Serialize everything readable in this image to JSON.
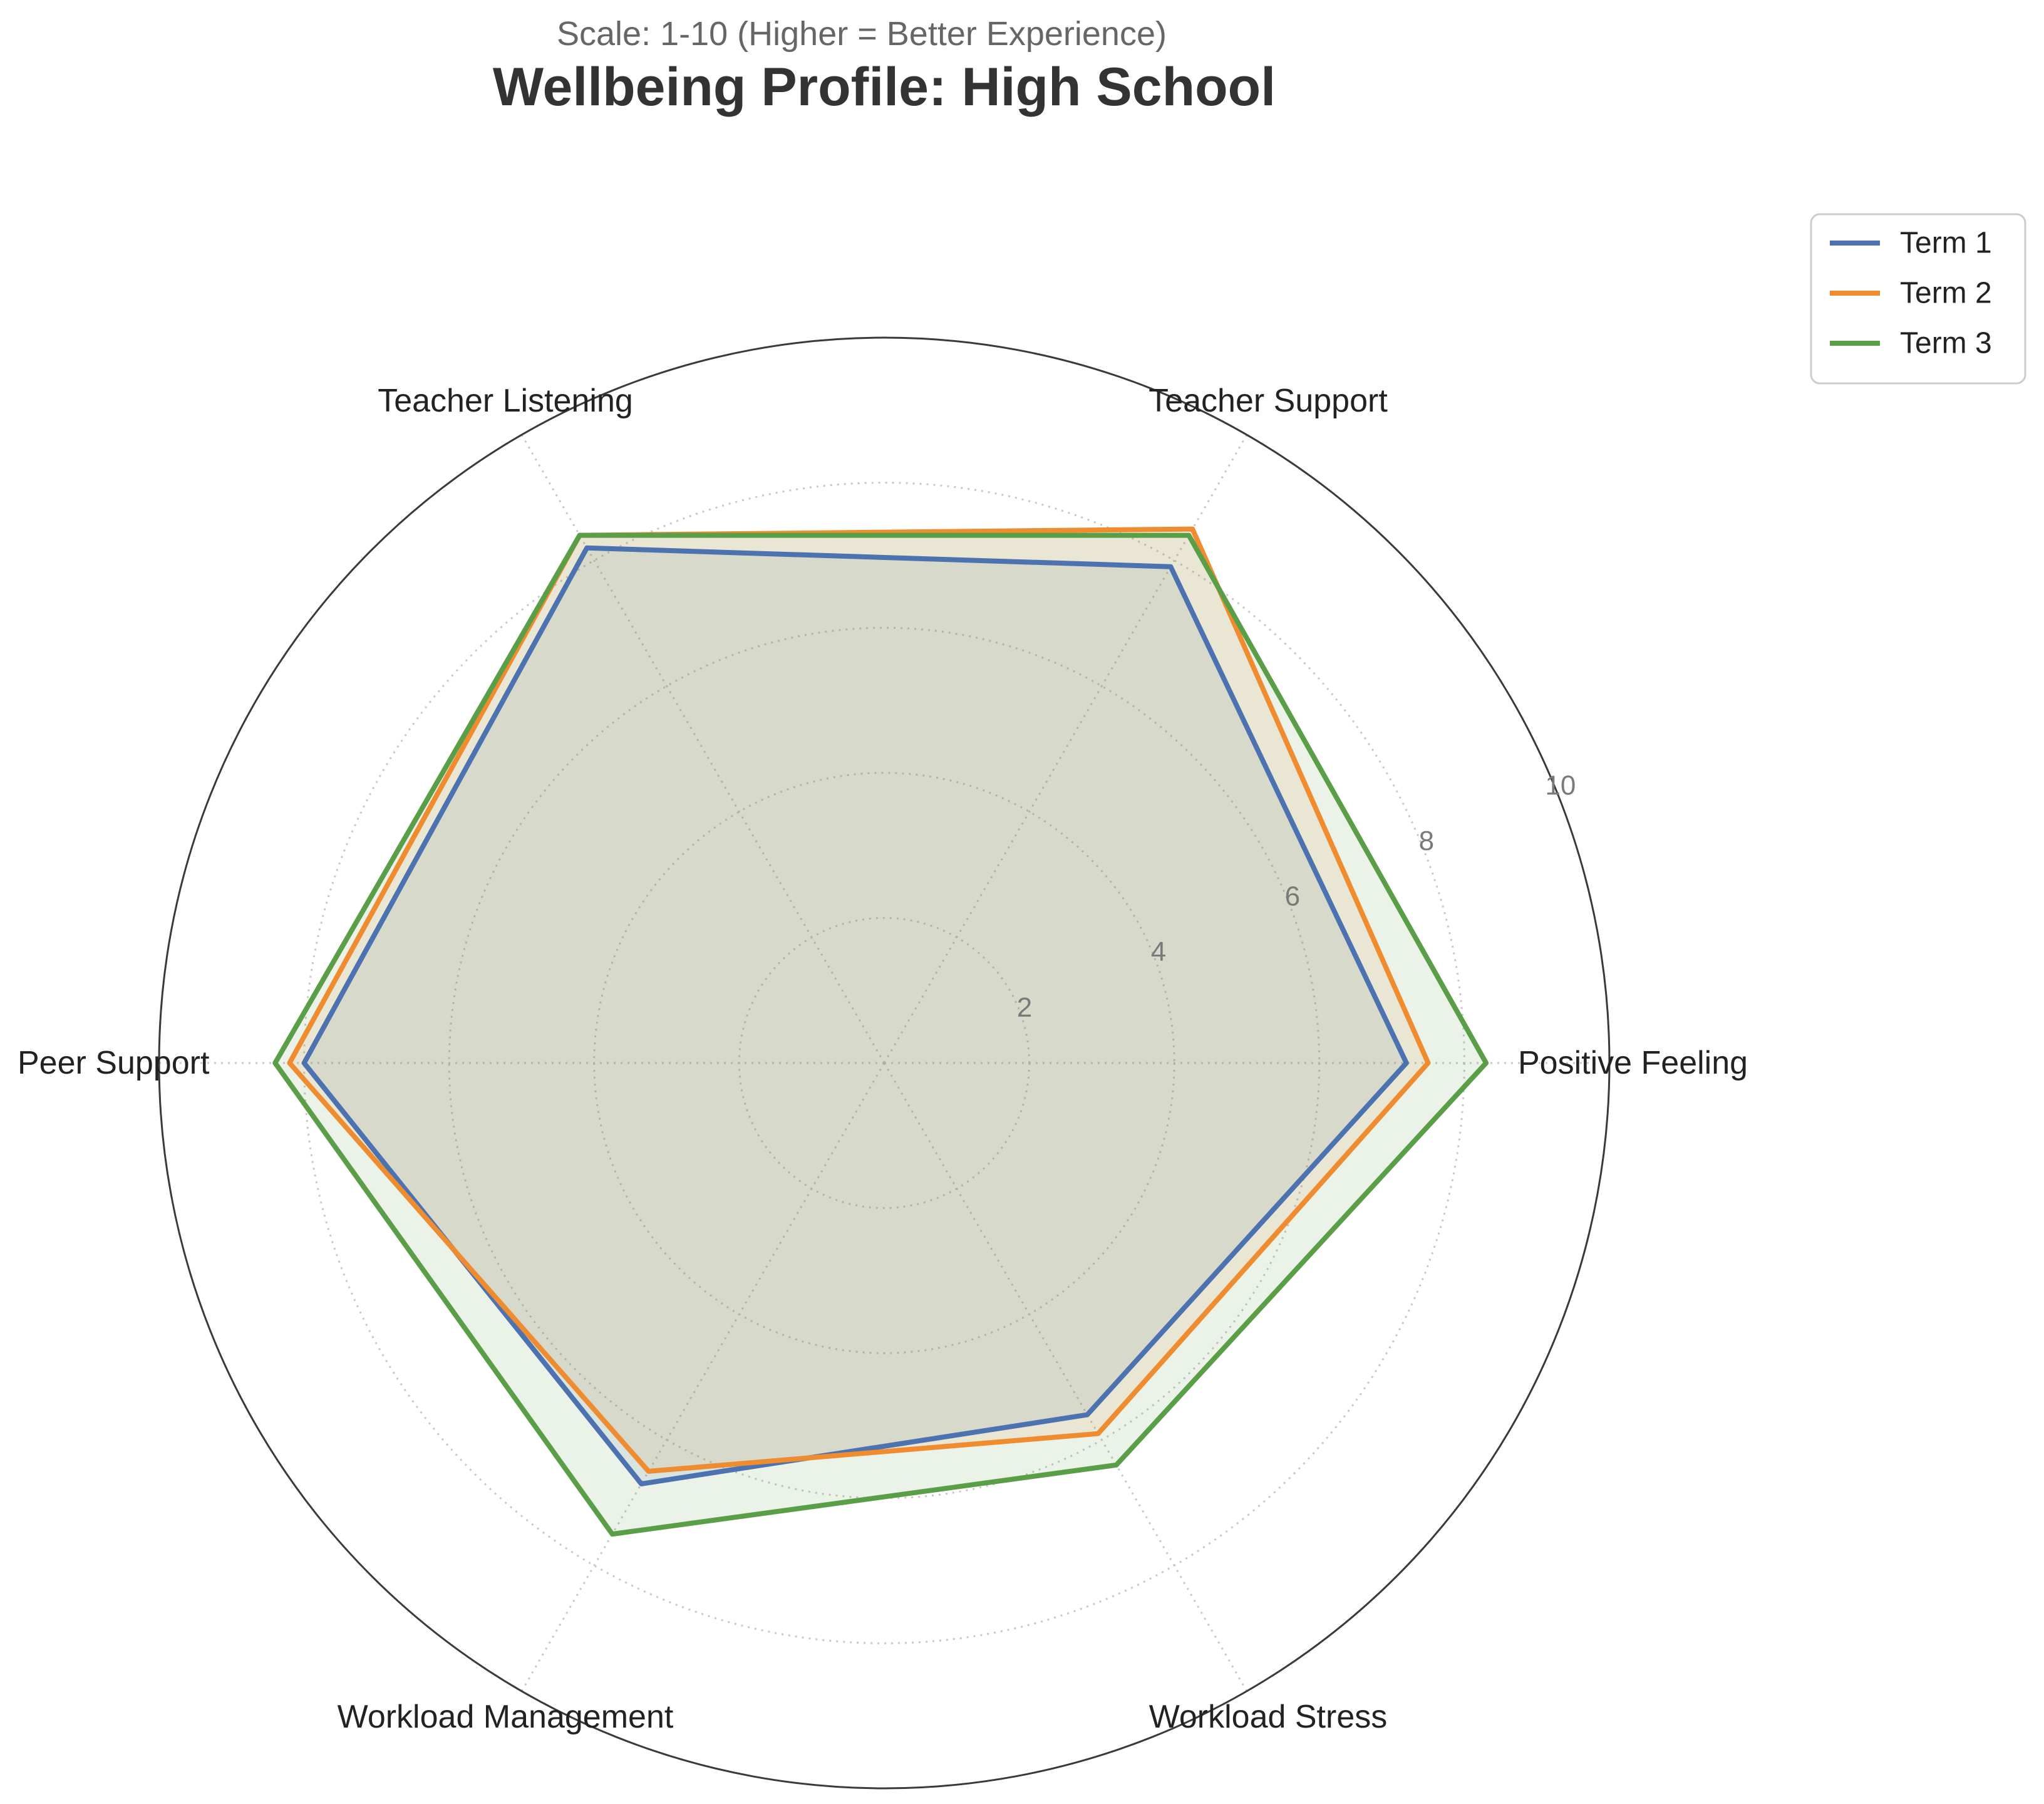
{
  "chart_data": {
    "type": "radar",
    "title": "Wellbeing Profile: High School",
    "subtitle": "Scale: 1-10 (Higher = Better Experience)",
    "categories": [
      "Positive Feeling",
      "Teacher Support",
      "Teacher Listening",
      "Peer Support",
      "Workload Management",
      "Workload Stress"
    ],
    "rlim": [
      0,
      10
    ],
    "rticks": [
      2,
      4,
      6,
      8,
      10
    ],
    "grid": true,
    "legend_position": "top-right",
    "series": [
      {
        "name": "Term 1",
        "color": "#4c72b0",
        "values": [
          7.2,
          7.9,
          8.2,
          8.0,
          6.7,
          5.6
        ]
      },
      {
        "name": "Term 2",
        "color": "#ef8c30",
        "values": [
          7.5,
          8.5,
          8.4,
          8.2,
          6.5,
          5.9
        ]
      },
      {
        "name": "Term 3",
        "color": "#5a9e48",
        "values": [
          8.3,
          8.4,
          8.4,
          8.4,
          7.5,
          6.4
        ]
      }
    ]
  }
}
